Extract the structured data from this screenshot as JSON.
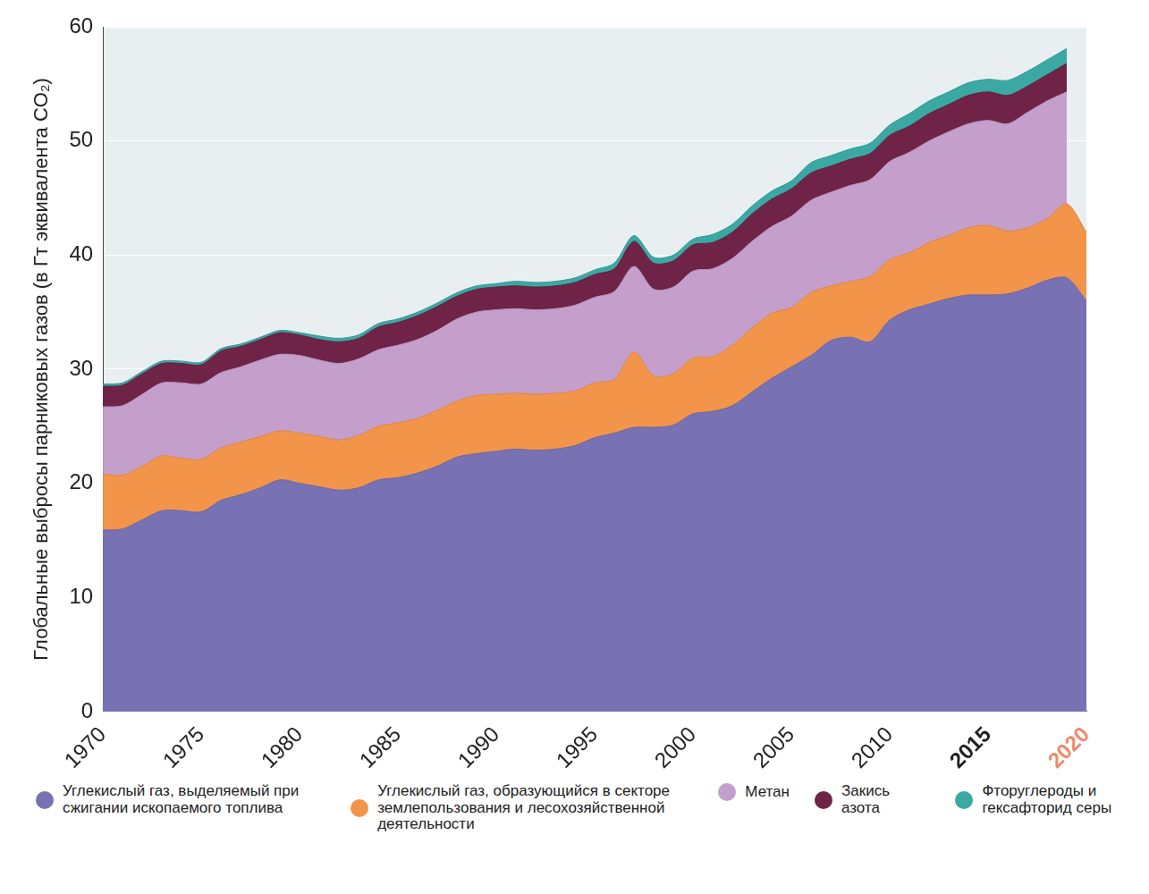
{
  "chart_data": {
    "type": "area",
    "y_label": "Глобальные выбросы парниковых газов (в Гт эквивалента CO₂)",
    "x": [
      1970,
      1971,
      1972,
      1973,
      1974,
      1975,
      1976,
      1977,
      1978,
      1979,
      1980,
      1981,
      1982,
      1983,
      1984,
      1985,
      1986,
      1987,
      1988,
      1989,
      1990,
      1991,
      1992,
      1993,
      1994,
      1995,
      1996,
      1997,
      1998,
      1999,
      2000,
      2001,
      2002,
      2003,
      2004,
      2005,
      2006,
      2007,
      2008,
      2009,
      2010,
      2011,
      2012,
      2013,
      2014,
      2015,
      2016,
      2017,
      2018,
      2019,
      2020
    ],
    "series": [
      {
        "name": "Углекислый газ, выделяемый при сжигании ископаемого топлива",
        "color": "#7871b3",
        "values": [
          15.9,
          16.0,
          16.8,
          17.6,
          17.6,
          17.5,
          18.5,
          19.0,
          19.6,
          20.3,
          20.0,
          19.7,
          19.4,
          19.6,
          20.3,
          20.5,
          20.9,
          21.5,
          22.3,
          22.6,
          22.8,
          23.0,
          22.9,
          23.0,
          23.3,
          24.0,
          24.4,
          24.9,
          24.9,
          25.1,
          26.1,
          26.3,
          26.8,
          28.0,
          29.2,
          30.2,
          31.2,
          32.5,
          32.8,
          32.4,
          34.3,
          35.2,
          35.7,
          36.2,
          36.5,
          36.5,
          36.6,
          37.1,
          37.8,
          38.0,
          36.0
        ]
      },
      {
        "name": "Углекислый газ, образующийся в секторе землепользования и лесохозяйственной деятельности",
        "color": "#f2954a",
        "values": [
          4.9,
          4.7,
          4.7,
          4.8,
          4.6,
          4.6,
          4.6,
          4.6,
          4.5,
          4.3,
          4.4,
          4.4,
          4.4,
          4.6,
          4.7,
          4.8,
          4.8,
          4.9,
          4.9,
          5.1,
          5.0,
          4.9,
          4.9,
          4.9,
          4.8,
          4.8,
          4.7,
          6.6,
          4.5,
          4.5,
          4.9,
          4.8,
          5.3,
          5.6,
          5.7,
          5.2,
          5.5,
          4.8,
          4.9,
          5.7,
          5.3,
          5.0,
          5.4,
          5.5,
          5.9,
          6.1,
          5.5,
          5.3,
          5.4,
          6.5,
          6.0
        ]
      },
      {
        "name": "Метан",
        "color": "#c59fcb",
        "values": [
          5.9,
          6.1,
          6.3,
          6.4,
          6.6,
          6.6,
          6.6,
          6.6,
          6.7,
          6.7,
          6.8,
          6.7,
          6.7,
          6.7,
          6.7,
          6.8,
          6.9,
          7.0,
          7.2,
          7.3,
          7.4,
          7.4,
          7.4,
          7.4,
          7.5,
          7.5,
          7.7,
          7.5,
          7.6,
          7.6,
          7.6,
          7.7,
          7.6,
          7.6,
          7.6,
          8.0,
          8.1,
          8.2,
          8.4,
          8.5,
          8.6,
          8.8,
          8.9,
          9.1,
          9.1,
          9.2,
          9.4,
          10.1,
          10.3,
          9.8,
          null
        ]
      },
      {
        "name": "Закись азота",
        "color": "#6e2347",
        "values": [
          1.8,
          1.8,
          1.8,
          1.7,
          1.7,
          1.7,
          1.9,
          1.8,
          1.8,
          1.9,
          1.8,
          1.8,
          1.9,
          1.8,
          2.0,
          2.0,
          2.1,
          2.1,
          2.0,
          2.0,
          2.0,
          2.0,
          2.0,
          2.0,
          2.0,
          2.0,
          2.0,
          2.2,
          2.3,
          2.3,
          2.3,
          2.3,
          2.3,
          2.4,
          2.4,
          2.4,
          2.4,
          2.3,
          2.3,
          2.3,
          2.3,
          2.3,
          2.4,
          2.4,
          2.5,
          2.5,
          2.5,
          2.3,
          2.3,
          2.5,
          null
        ]
      },
      {
        "name": "Фторуглероды и гексафторид серы",
        "color": "#3aa9a4",
        "values": [
          0.2,
          0.2,
          0.2,
          0.2,
          0.2,
          0.2,
          0.2,
          0.2,
          0.2,
          0.2,
          0.2,
          0.3,
          0.3,
          0.3,
          0.3,
          0.3,
          0.3,
          0.3,
          0.3,
          0.3,
          0.3,
          0.4,
          0.4,
          0.4,
          0.4,
          0.4,
          0.5,
          0.5,
          0.5,
          0.5,
          0.5,
          0.7,
          0.7,
          0.7,
          0.7,
          0.7,
          0.9,
          0.9,
          0.9,
          0.9,
          0.9,
          1.1,
          1.1,
          1.1,
          1.1,
          1.1,
          1.3,
          1.3,
          1.3,
          1.3,
          null
        ]
      }
    ],
    "xlim": [
      1970,
      2020
    ],
    "xticks": [
      1970,
      1975,
      1980,
      1985,
      1990,
      1995,
      2000,
      2005,
      2010,
      2015,
      2020
    ],
    "ylim": [
      0,
      60
    ],
    "yticks": [
      0,
      10,
      20,
      30,
      40,
      50,
      60
    ],
    "stacked": true,
    "grid": true,
    "legend": "bottom"
  }
}
